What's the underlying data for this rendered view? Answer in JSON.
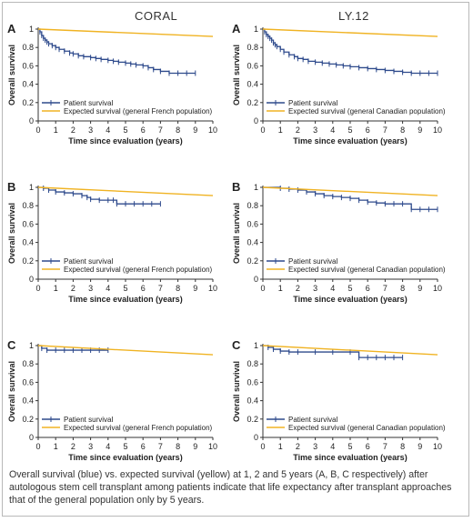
{
  "column_titles": [
    "CORAL",
    "LY.12"
  ],
  "caption": "Overall survival (blue) vs. expected survival (yellow) at 1, 2 and 5 years (A, B, C respectively) after autologous stem cell transplant among patients indicate that life expectancy after transplant approaches that of the general population only by 5 years.",
  "colors": {
    "patient": "#2e4a8c",
    "expected": "#f0b323",
    "axis": "#333333"
  },
  "chart_data": [
    {
      "type": "line",
      "panel_letter": "A",
      "xlabel": "Time since evaluation (years)",
      "ylabel": "Overall survival",
      "xlim": [
        0,
        10
      ],
      "ylim": [
        0,
        1
      ],
      "xticks": [
        0,
        1,
        2,
        3,
        4,
        5,
        6,
        7,
        8,
        9,
        10
      ],
      "yticks": [
        0,
        0.2,
        0.4,
        0.6,
        0.8,
        1
      ],
      "ytick_labels": [
        "0",
        "0.2",
        "0.4",
        "0.6",
        "0.8",
        "1"
      ],
      "legend_position": "bottom-left",
      "series": [
        {
          "name": "Patient survival",
          "step": true,
          "censor_marks": true,
          "x": [
            0,
            0.1,
            0.2,
            0.3,
            0.4,
            0.5,
            0.6,
            0.8,
            1,
            1.2,
            1.5,
            1.8,
            2,
            2.3,
            2.6,
            3,
            3.3,
            3.6,
            4,
            4.3,
            4.6,
            5,
            5.3,
            5.6,
            6,
            6.3,
            6.6,
            7,
            7.5,
            8,
            8.5,
            9
          ],
          "y": [
            1,
            0.97,
            0.93,
            0.9,
            0.88,
            0.86,
            0.84,
            0.82,
            0.8,
            0.78,
            0.76,
            0.74,
            0.73,
            0.71,
            0.7,
            0.69,
            0.68,
            0.67,
            0.66,
            0.65,
            0.64,
            0.63,
            0.62,
            0.61,
            0.6,
            0.58,
            0.56,
            0.54,
            0.52,
            0.52,
            0.52,
            0.52
          ]
        },
        {
          "name": "Expected survival (general French population)",
          "step": false,
          "censor_marks": false,
          "x": [
            0,
            10
          ],
          "y": [
            1,
            0.92
          ]
        }
      ]
    },
    {
      "type": "line",
      "panel_letter": "A",
      "xlabel": "Time since evaluation (years)",
      "ylabel": "Overall survival",
      "xlim": [
        0,
        10
      ],
      "ylim": [
        0,
        1
      ],
      "xticks": [
        0,
        1,
        2,
        3,
        4,
        5,
        6,
        7,
        8,
        9,
        10
      ],
      "yticks": [
        0,
        0.2,
        0.4,
        0.6,
        0.8,
        1
      ],
      "ytick_labels": [
        "0",
        "0.2",
        "0.4",
        "0.6",
        "0.8",
        "1"
      ],
      "legend_position": "bottom-left",
      "series": [
        {
          "name": "Patient survival",
          "step": true,
          "censor_marks": true,
          "x": [
            0,
            0.1,
            0.2,
            0.3,
            0.4,
            0.5,
            0.6,
            0.7,
            0.8,
            1,
            1.2,
            1.5,
            1.8,
            2,
            2.3,
            2.6,
            3,
            3.4,
            3.8,
            4.2,
            4.6,
            5,
            5.5,
            6,
            6.5,
            7,
            7.5,
            8,
            8.5,
            9,
            9.5,
            10
          ],
          "y": [
            1,
            0.97,
            0.94,
            0.92,
            0.9,
            0.88,
            0.85,
            0.83,
            0.81,
            0.78,
            0.75,
            0.72,
            0.7,
            0.68,
            0.67,
            0.65,
            0.64,
            0.63,
            0.62,
            0.61,
            0.6,
            0.59,
            0.58,
            0.57,
            0.56,
            0.55,
            0.54,
            0.53,
            0.52,
            0.52,
            0.52,
            0.52
          ]
        },
        {
          "name": "Expected survival (general Canadian population)",
          "step": false,
          "censor_marks": false,
          "x": [
            0,
            10
          ],
          "y": [
            1,
            0.92
          ]
        }
      ]
    },
    {
      "type": "line",
      "panel_letter": "B",
      "xlabel": "Time since evaluation (years)",
      "ylabel": "Overall survival",
      "xlim": [
        0,
        10
      ],
      "ylim": [
        0,
        1
      ],
      "xticks": [
        0,
        1,
        2,
        3,
        4,
        5,
        6,
        7,
        8,
        9,
        10
      ],
      "yticks": [
        0,
        0.2,
        0.4,
        0.6,
        0.8,
        1
      ],
      "ytick_labels": [
        "0",
        "0.2",
        "0.4",
        "0.6",
        "0.8",
        "1"
      ],
      "legend_position": "bottom-left",
      "series": [
        {
          "name": "Patient survival",
          "step": true,
          "censor_marks": true,
          "x": [
            0,
            0.3,
            0.6,
            1,
            1.5,
            2,
            2.5,
            2.8,
            3,
            3.5,
            4,
            4.3,
            4.5,
            5,
            5.5,
            6,
            6.5,
            7
          ],
          "y": [
            1,
            0.99,
            0.97,
            0.95,
            0.94,
            0.93,
            0.91,
            0.89,
            0.87,
            0.86,
            0.86,
            0.86,
            0.82,
            0.82,
            0.82,
            0.82,
            0.82,
            0.82
          ]
        },
        {
          "name": "Expected survival (general French population)",
          "step": false,
          "censor_marks": false,
          "x": [
            0,
            10
          ],
          "y": [
            1,
            0.91
          ]
        }
      ]
    },
    {
      "type": "line",
      "panel_letter": "B",
      "xlabel": "Time since evaluation (years)",
      "ylabel": "Overall survival",
      "xlim": [
        0,
        10
      ],
      "ylim": [
        0,
        1
      ],
      "xticks": [
        0,
        1,
        2,
        3,
        4,
        5,
        6,
        7,
        8,
        9,
        10
      ],
      "yticks": [
        0,
        0.2,
        0.4,
        0.6,
        0.8,
        1
      ],
      "ytick_labels": [
        "0",
        "0.2",
        "0.4",
        "0.6",
        "0.8",
        "1"
      ],
      "legend_position": "bottom-left",
      "series": [
        {
          "name": "Patient survival",
          "step": true,
          "censor_marks": true,
          "x": [
            0,
            1,
            1.5,
            2,
            2.5,
            3,
            3.5,
            4,
            4.5,
            5,
            5.5,
            6,
            6.5,
            7,
            7.5,
            8,
            8.5,
            9,
            9.5,
            10
          ],
          "y": [
            1,
            0.99,
            0.98,
            0.97,
            0.95,
            0.93,
            0.91,
            0.9,
            0.89,
            0.88,
            0.86,
            0.84,
            0.83,
            0.82,
            0.82,
            0.82,
            0.76,
            0.76,
            0.76,
            0.76
          ]
        },
        {
          "name": "Expected survival (general Canadian population)",
          "step": false,
          "censor_marks": false,
          "x": [
            0,
            10
          ],
          "y": [
            1,
            0.91
          ]
        }
      ]
    },
    {
      "type": "line",
      "panel_letter": "C",
      "xlabel": "Time since evaluation (years)",
      "ylabel": "Overall survival",
      "xlim": [
        0,
        10
      ],
      "ylim": [
        0,
        1
      ],
      "xticks": [
        0,
        1,
        2,
        3,
        4,
        5,
        6,
        7,
        8,
        9,
        10
      ],
      "yticks": [
        0,
        0.2,
        0.4,
        0.6,
        0.8,
        1
      ],
      "ytick_labels": [
        "0",
        "0.2",
        "0.4",
        "0.6",
        "0.8",
        "1"
      ],
      "legend_position": "bottom-left",
      "series": [
        {
          "name": "Patient survival",
          "step": true,
          "censor_marks": true,
          "x": [
            0,
            0.2,
            0.5,
            1,
            1.5,
            2,
            2.5,
            3,
            3.5,
            4
          ],
          "y": [
            1,
            0.97,
            0.95,
            0.95,
            0.95,
            0.95,
            0.95,
            0.95,
            0.95,
            0.95
          ]
        },
        {
          "name": "Expected survival (general French population)",
          "step": false,
          "censor_marks": false,
          "x": [
            0,
            10
          ],
          "y": [
            1,
            0.9
          ]
        }
      ]
    },
    {
      "type": "line",
      "panel_letter": "C",
      "xlabel": "Time since evaluation (years)",
      "ylabel": "Overall survival",
      "xlim": [
        0,
        10
      ],
      "ylim": [
        0,
        1
      ],
      "xticks": [
        0,
        1,
        2,
        3,
        4,
        5,
        6,
        7,
        8,
        9,
        10
      ],
      "yticks": [
        0,
        0.2,
        0.4,
        0.6,
        0.8,
        1
      ],
      "ytick_labels": [
        "0",
        "0.2",
        "0.4",
        "0.6",
        "0.8",
        "1"
      ],
      "legend_position": "bottom-left",
      "series": [
        {
          "name": "Patient survival",
          "step": true,
          "censor_marks": true,
          "x": [
            0,
            0.3,
            0.6,
            1,
            1.5,
            2,
            3,
            4,
            5,
            5.5,
            6,
            6.5,
            7,
            7.5,
            8
          ],
          "y": [
            1,
            0.98,
            0.96,
            0.94,
            0.93,
            0.93,
            0.93,
            0.93,
            0.93,
            0.87,
            0.87,
            0.87,
            0.87,
            0.87,
            0.87
          ]
        },
        {
          "name": "Expected survival (general Canadian population)",
          "step": false,
          "censor_marks": false,
          "x": [
            0,
            10
          ],
          "y": [
            1,
            0.9
          ]
        }
      ]
    }
  ]
}
